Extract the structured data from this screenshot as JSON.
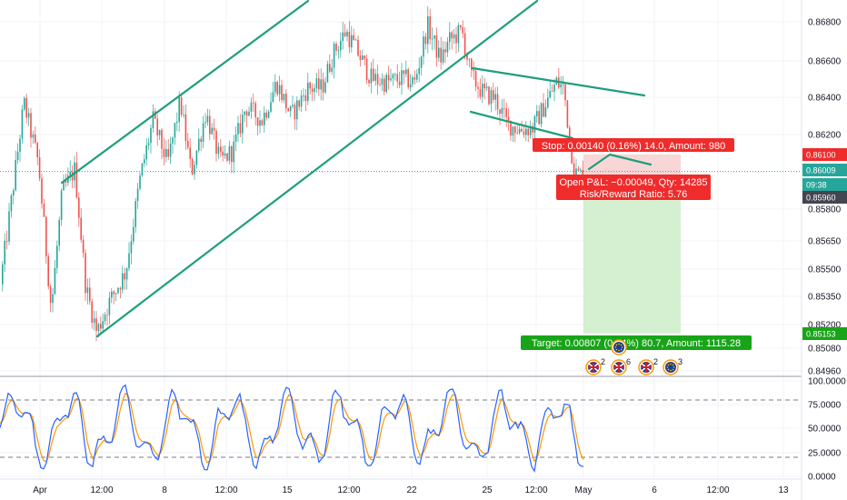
{
  "chart_data": {
    "type": "candlestick",
    "colors": {
      "up": "#26a69a",
      "down": "#ef5350",
      "trendline": "#1c9f7c",
      "stop_zone": "#f7c8c8",
      "target_zone": "#c9ecc5",
      "stop_label": "#ef2b2b",
      "target_label": "#18a418",
      "k_line": "#2962ff",
      "d_line": "#ff9800"
    },
    "price_axis": {
      "ticks": [
        "0.86800",
        "0.86600",
        "0.86400",
        "0.86200",
        "0.85800",
        "0.85650",
        "0.85500",
        "0.85350",
        "0.85200",
        "0.85080",
        "0.84960"
      ],
      "range": [
        0.849,
        0.869
      ]
    },
    "price_tags": [
      {
        "label": "0.86100",
        "color": "#ef2b2b"
      },
      {
        "label": "0.86009",
        "color": "#26a69a"
      },
      {
        "label": "09:38",
        "color": "#26a69a"
      },
      {
        "label": "0.85960",
        "color": "#434651"
      },
      {
        "label": "0.85153",
        "color": "#18a418"
      }
    ],
    "time_axis": {
      "ticks": [
        "Apr",
        "12:00",
        "8",
        "12:00",
        "15",
        "12:00",
        "22",
        "25",
        "12:00",
        "May",
        "6",
        "12:00",
        "13"
      ]
    },
    "position": {
      "type": "short",
      "stop_text": "Stop: 0.00140 (0.16%) 14.0, Amount: 980",
      "pnl_text": "Open P&L: −0.00049, Qty: 14285",
      "rr_text": "Risk/Reward Ratio: 5.76",
      "target_text": "Target: 0.00807 (0.94%) 80.7, Amount: 1115.28",
      "entry": 0.8596,
      "stop": 0.861,
      "target": 0.85153
    },
    "events": [
      {
        "flag": "uk-flag-icon",
        "count": "2"
      },
      {
        "flag": "uk-flag-icon",
        "count": "6"
      },
      {
        "flag": "uk-flag-icon",
        "count": "2"
      },
      {
        "flag": "eu-flag-icon",
        "count": "3"
      },
      {
        "flag": "eu-flag-icon",
        "count": ""
      }
    ],
    "oscillator": {
      "ticks": [
        "100.0000",
        "75.0000",
        "50.0000",
        "25.0000",
        "0.0000"
      ],
      "range": [
        0,
        100
      ],
      "levels": [
        80,
        20
      ]
    }
  }
}
